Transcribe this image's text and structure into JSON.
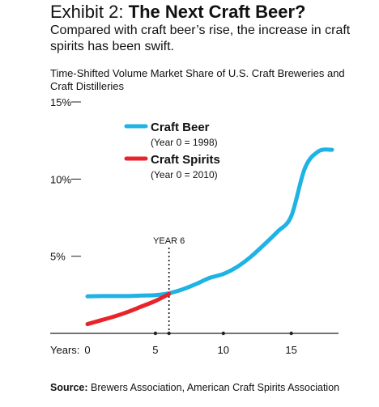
{
  "header": {
    "exhibit_label": "Exhibit 2:",
    "exhibit_title": "The Next Craft Beer?",
    "subtitle": "Compared with craft beer’s rise, the increase in craft spirits has been swift."
  },
  "colors": {
    "craft_beer": "#1fb3e5",
    "craft_spirits": "#e8232a",
    "axis": "#222222"
  },
  "chart_data": {
    "type": "line",
    "title": "Time-Shifted Volume Market Share of U.S. Craft Breweries and Craft Distilleries",
    "xlabel": "Years:",
    "ylabel": "",
    "xlim": [
      0,
      18
    ],
    "ylim": [
      0,
      15
    ],
    "x_ticks": [
      0,
      5,
      10,
      15
    ],
    "x_tick_labels": [
      "0",
      "5",
      "10",
      "15"
    ],
    "y_ticks": [
      5,
      10,
      15
    ],
    "y_tick_labels": [
      "5%",
      "10%",
      "15%"
    ],
    "grid": false,
    "legend_placement": "top-left",
    "annotation": {
      "label": "YEAR 6",
      "x": 6
    },
    "series": [
      {
        "name": "Craft Beer",
        "note": "(Year 0 = 1998)",
        "color": "#1fb3e5",
        "x": [
          0,
          1,
          2,
          3,
          4,
          5,
          6,
          7,
          8,
          9,
          10,
          11,
          12,
          13,
          14,
          15,
          16,
          17,
          18
        ],
        "values": [
          2.4,
          2.42,
          2.42,
          2.42,
          2.45,
          2.48,
          2.6,
          2.85,
          3.2,
          3.6,
          3.85,
          4.3,
          4.95,
          5.75,
          6.6,
          7.6,
          10.7,
          11.8,
          11.9
        ]
      },
      {
        "name": "Craft Spirits",
        "note": "(Year 0 = 2010)",
        "color": "#e8232a",
        "x": [
          0,
          1,
          2,
          3,
          4,
          5,
          6
        ],
        "values": [
          0.6,
          0.85,
          1.1,
          1.4,
          1.75,
          2.1,
          2.55
        ]
      }
    ]
  },
  "source": {
    "label": "Source:",
    "text": "Brewers Association, American Craft Spirits Association"
  }
}
